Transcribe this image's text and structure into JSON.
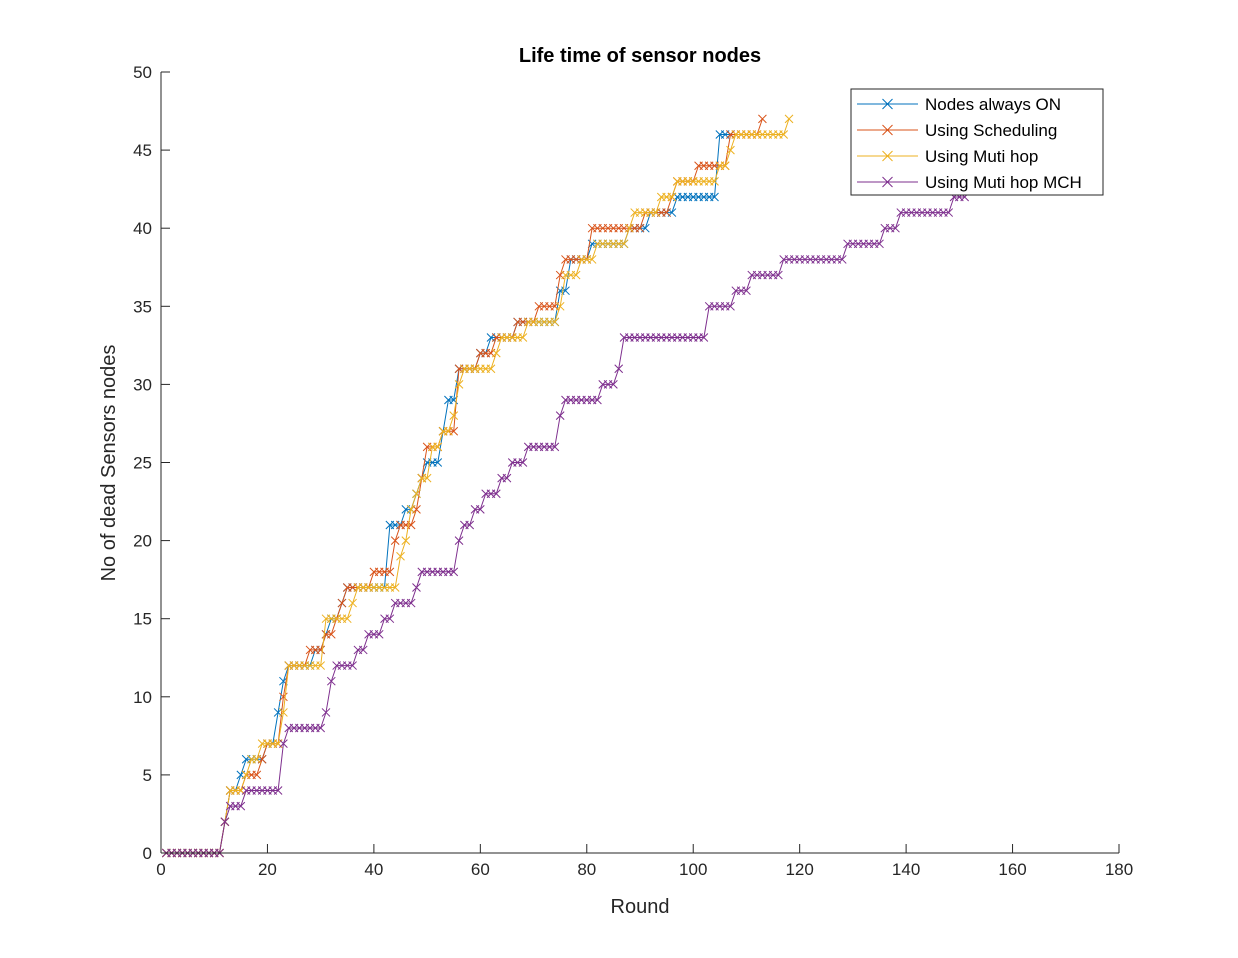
{
  "chart_data": {
    "type": "line",
    "title": "Life time of sensor nodes",
    "xlabel": "Round",
    "ylabel": "No of dead Sensors nodes",
    "xlim": [
      0,
      180
    ],
    "ylim": [
      0,
      50
    ],
    "xticks": [
      0,
      20,
      40,
      60,
      80,
      100,
      120,
      140,
      160,
      180
    ],
    "yticks": [
      0,
      5,
      10,
      15,
      20,
      25,
      30,
      35,
      40,
      45,
      50
    ],
    "grid": false,
    "legend_position": "top-right",
    "marker": "x",
    "series": [
      {
        "name": "Nodes always ON",
        "color": "#0072BD",
        "x": [
          1,
          2,
          3,
          4,
          5,
          6,
          7,
          8,
          9,
          10,
          11,
          12,
          13,
          14,
          15,
          16,
          17,
          18,
          19,
          20,
          21,
          22,
          23,
          24,
          25,
          26,
          27,
          28,
          29,
          30,
          31,
          32,
          33,
          34,
          35,
          36,
          37,
          38,
          39,
          40,
          41,
          42,
          43,
          44,
          45,
          46,
          47,
          48,
          49,
          50,
          51,
          52,
          53,
          54,
          55,
          56,
          57,
          58,
          59,
          60,
          61,
          62,
          63,
          64,
          65,
          66,
          67,
          68,
          69,
          70,
          71,
          72,
          73,
          74,
          75,
          76,
          77,
          78,
          79,
          80,
          81,
          82,
          83,
          84,
          85,
          86,
          87,
          88,
          89,
          90,
          91,
          92,
          93,
          94,
          95,
          96,
          97,
          98,
          99,
          100,
          101,
          102,
          103,
          104,
          105,
          106,
          107
        ],
        "y": [
          0,
          0,
          0,
          0,
          0,
          0,
          0,
          0,
          0,
          0,
          0,
          2,
          4,
          4,
          5,
          6,
          6,
          6,
          6,
          7,
          7,
          9,
          11,
          12,
          12,
          12,
          12,
          12,
          13,
          13,
          14,
          15,
          15,
          16,
          17,
          17,
          17,
          17,
          17,
          17,
          17,
          17,
          21,
          21,
          21,
          22,
          22,
          23,
          24,
          25,
          25,
          25,
          27,
          29,
          29,
          31,
          31,
          31,
          31,
          32,
          32,
          33,
          33,
          33,
          33,
          33,
          34,
          34,
          34,
          34,
          34,
          34,
          34,
          34,
          36,
          36,
          38,
          38,
          38,
          38,
          39,
          39,
          39,
          39,
          39,
          39,
          39,
          40,
          40,
          40,
          40,
          41,
          41,
          41,
          41,
          41,
          42,
          42,
          42,
          42,
          42,
          42,
          42,
          42,
          46,
          46,
          46
        ]
      },
      {
        "name": "Using Scheduling",
        "color": "#D95319",
        "x": [
          1,
          2,
          3,
          4,
          5,
          6,
          7,
          8,
          9,
          10,
          11,
          12,
          13,
          14,
          15,
          16,
          17,
          18,
          19,
          20,
          21,
          22,
          23,
          24,
          25,
          26,
          27,
          28,
          29,
          30,
          31,
          32,
          33,
          34,
          35,
          36,
          37,
          38,
          39,
          40,
          41,
          42,
          43,
          44,
          45,
          46,
          47,
          48,
          49,
          50,
          51,
          52,
          53,
          54,
          55,
          56,
          57,
          58,
          59,
          60,
          61,
          62,
          63,
          64,
          65,
          66,
          67,
          68,
          69,
          70,
          71,
          72,
          73,
          74,
          75,
          76,
          77,
          78,
          79,
          80,
          81,
          82,
          83,
          84,
          85,
          86,
          87,
          88,
          89,
          90,
          91,
          92,
          93,
          94,
          95,
          96,
          97,
          98,
          99,
          100,
          101,
          102,
          103,
          104,
          105,
          106,
          107,
          108,
          109,
          110,
          111,
          112,
          113
        ],
        "y": [
          0,
          0,
          0,
          0,
          0,
          0,
          0,
          0,
          0,
          0,
          0,
          2,
          4,
          4,
          4,
          5,
          5,
          5,
          6,
          7,
          7,
          7,
          10,
          12,
          12,
          12,
          12,
          13,
          13,
          13,
          14,
          14,
          15,
          16,
          17,
          17,
          17,
          17,
          17,
          18,
          18,
          18,
          18,
          20,
          21,
          21,
          21,
          22,
          24,
          26,
          26,
          26,
          27,
          27,
          27,
          31,
          31,
          31,
          31,
          32,
          32,
          32,
          33,
          33,
          33,
          33,
          34,
          34,
          34,
          34,
          35,
          35,
          35,
          35,
          37,
          38,
          38,
          38,
          38,
          38,
          40,
          40,
          40,
          40,
          40,
          40,
          40,
          40,
          40,
          40,
          41,
          41,
          41,
          41,
          41,
          42,
          43,
          43,
          43,
          43,
          44,
          44,
          44,
          44,
          44,
          44,
          46,
          46,
          46,
          46,
          46,
          46,
          47
        ]
      },
      {
        "name": "Using Muti hop",
        "color": "#EDB120",
        "x": [
          1,
          2,
          3,
          4,
          5,
          6,
          7,
          8,
          9,
          10,
          11,
          12,
          13,
          14,
          15,
          16,
          17,
          18,
          19,
          20,
          21,
          22,
          23,
          24,
          25,
          26,
          27,
          28,
          29,
          30,
          31,
          32,
          33,
          34,
          35,
          36,
          37,
          38,
          39,
          40,
          41,
          42,
          43,
          44,
          45,
          46,
          47,
          48,
          49,
          50,
          51,
          52,
          53,
          54,
          55,
          56,
          57,
          58,
          59,
          60,
          61,
          62,
          63,
          64,
          65,
          66,
          67,
          68,
          69,
          70,
          71,
          72,
          73,
          74,
          75,
          76,
          77,
          78,
          79,
          80,
          81,
          82,
          83,
          84,
          85,
          86,
          87,
          88,
          89,
          90,
          91,
          92,
          93,
          94,
          95,
          96,
          97,
          98,
          99,
          100,
          101,
          102,
          103,
          104,
          105,
          106,
          107,
          108,
          109,
          110,
          111,
          112,
          113,
          114,
          115,
          116,
          117,
          118
        ],
        "y": [
          0,
          0,
          0,
          0,
          0,
          0,
          0,
          0,
          0,
          0,
          0,
          2,
          4,
          4,
          4,
          5,
          6,
          6,
          7,
          7,
          7,
          7,
          9,
          12,
          12,
          12,
          12,
          12,
          12,
          12,
          15,
          15,
          15,
          15,
          15,
          16,
          17,
          17,
          17,
          17,
          17,
          17,
          17,
          17,
          19,
          20,
          22,
          23,
          24,
          24,
          26,
          26,
          27,
          27,
          28,
          30,
          31,
          31,
          31,
          31,
          31,
          31,
          32,
          33,
          33,
          33,
          33,
          33,
          34,
          34,
          34,
          34,
          34,
          34,
          35,
          37,
          37,
          37,
          38,
          38,
          38,
          39,
          39,
          39,
          39,
          39,
          39,
          40,
          41,
          41,
          41,
          41,
          41,
          42,
          42,
          42,
          43,
          43,
          43,
          43,
          43,
          43,
          43,
          43,
          44,
          44,
          45,
          46,
          46,
          46,
          46,
          46,
          46,
          46,
          46,
          46,
          46,
          47
        ]
      },
      {
        "name": "Using Muti hop MCH",
        "color": "#7E2F8E",
        "x": [
          1,
          2,
          3,
          4,
          5,
          6,
          7,
          8,
          9,
          10,
          11,
          12,
          13,
          14,
          15,
          16,
          17,
          18,
          19,
          20,
          21,
          22,
          23,
          24,
          25,
          26,
          27,
          28,
          29,
          30,
          31,
          32,
          33,
          34,
          35,
          36,
          37,
          38,
          39,
          40,
          41,
          42,
          43,
          44,
          45,
          46,
          47,
          48,
          49,
          50,
          51,
          52,
          53,
          54,
          55,
          56,
          57,
          58,
          59,
          60,
          61,
          62,
          63,
          64,
          65,
          66,
          67,
          68,
          69,
          70,
          71,
          72,
          73,
          74,
          75,
          76,
          77,
          78,
          79,
          80,
          81,
          82,
          83,
          84,
          85,
          86,
          87,
          88,
          89,
          90,
          91,
          92,
          93,
          94,
          95,
          96,
          97,
          98,
          99,
          100,
          101,
          102,
          103,
          104,
          105,
          106,
          107,
          108,
          109,
          110,
          111,
          112,
          113,
          114,
          115,
          116,
          117,
          118,
          119,
          120,
          121,
          122,
          123,
          124,
          125,
          126,
          127,
          128,
          129,
          130,
          131,
          132,
          133,
          134,
          135,
          136,
          137,
          138,
          139,
          140,
          141,
          142,
          143,
          144,
          145,
          146,
          147,
          148,
          149,
          150,
          151
        ],
        "y": [
          0,
          0,
          0,
          0,
          0,
          0,
          0,
          0,
          0,
          0,
          0,
          2,
          3,
          3,
          3,
          4,
          4,
          4,
          4,
          4,
          4,
          4,
          7,
          8,
          8,
          8,
          8,
          8,
          8,
          8,
          9,
          11,
          12,
          12,
          12,
          12,
          13,
          13,
          14,
          14,
          14,
          15,
          15,
          16,
          16,
          16,
          16,
          17,
          18,
          18,
          18,
          18,
          18,
          18,
          18,
          20,
          21,
          21,
          22,
          22,
          23,
          23,
          23,
          24,
          24,
          25,
          25,
          25,
          26,
          26,
          26,
          26,
          26,
          26,
          28,
          29,
          29,
          29,
          29,
          29,
          29,
          29,
          30,
          30,
          30,
          31,
          33,
          33,
          33,
          33,
          33,
          33,
          33,
          33,
          33,
          33,
          33,
          33,
          33,
          33,
          33,
          33,
          35,
          35,
          35,
          35,
          35,
          36,
          36,
          36,
          37,
          37,
          37,
          37,
          37,
          37,
          38,
          38,
          38,
          38,
          38,
          38,
          38,
          38,
          38,
          38,
          38,
          38,
          39,
          39,
          39,
          39,
          39,
          39,
          39,
          40,
          40,
          40,
          41,
          41,
          41,
          41,
          41,
          41,
          41,
          41,
          41,
          41,
          42,
          42,
          42
        ]
      }
    ]
  }
}
